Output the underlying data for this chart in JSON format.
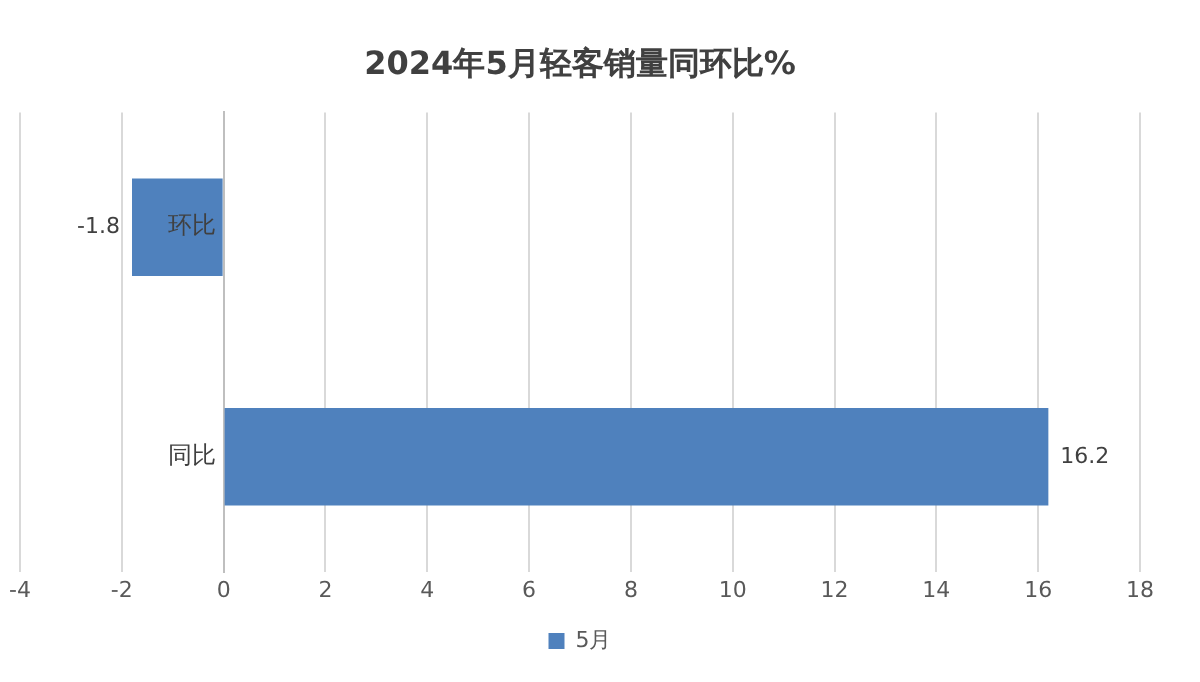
{
  "chart_data": {
    "type": "bar",
    "orientation": "horizontal",
    "title": "2024年5月轻客销量同环比%",
    "categories": [
      "环比",
      "同比"
    ],
    "series": [
      {
        "name": "5月",
        "color": "#4f81bd",
        "values": [
          -1.8,
          16.2
        ]
      }
    ],
    "xlim": [
      -4,
      18
    ],
    "xticks": [
      -4,
      -2,
      0,
      2,
      4,
      6,
      8,
      10,
      12,
      14,
      16,
      18
    ],
    "grid": "x",
    "legend": "bottom",
    "data_labels": true
  }
}
